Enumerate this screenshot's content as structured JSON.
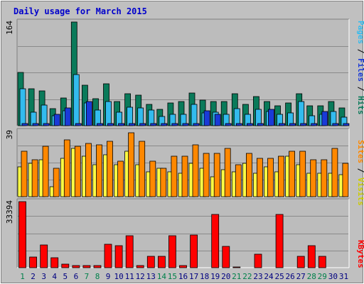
{
  "chart_data": {
    "type": "bar",
    "title": "Daily usage for March 2015",
    "categories": [
      "1",
      "2",
      "3",
      "4",
      "5",
      "6",
      "7",
      "8",
      "9",
      "10",
      "11",
      "12",
      "13",
      "14",
      "15",
      "16",
      "17",
      "18",
      "19",
      "20",
      "21",
      "22",
      "23",
      "24",
      "25",
      "26",
      "27",
      "28",
      "29",
      "30",
      "31"
    ],
    "weekend_days": [
      "1",
      "7",
      "8",
      "14",
      "15",
      "21",
      "22",
      "28",
      "29"
    ],
    "colors": {
      "background": "#c0c0c0",
      "plot": "#bcbcbc",
      "grid": "#8a8a8a",
      "title": "#0000cc",
      "hits": "#0a7a5a",
      "files": "#33bbee",
      "pages": "#1a3ad8",
      "visits": "#ffff44",
      "sites": "#ff8800",
      "kbytes": "#ff0000",
      "weekend_label": "#00804a",
      "weekday_label": "#000080"
    },
    "panels": [
      {
        "id": "hits-files-pages",
        "ymax_label": "164",
        "ymax": 164,
        "series": [
          {
            "name": "Hits",
            "values": [
              84,
              58,
              55,
              27,
              44,
              164,
              64,
              43,
              66,
              38,
              50,
              48,
              34,
              26,
              36,
              38,
              52,
              40,
              38,
              38,
              50,
              34,
              46,
              38,
              32,
              36,
              50,
              32,
              32,
              38,
              28
            ]
          },
          {
            "name": "Files",
            "values": [
              58,
              21,
              33,
              16,
              24,
              81,
              36,
              25,
              38,
              21,
              29,
              28,
              25,
              15,
              18,
              18,
              34,
              20,
              21,
              18,
              27,
              18,
              26,
              22,
              18,
              20,
              38,
              16,
              18,
              22,
              14
            ]
          },
          {
            "name": "Pages",
            "values": [
              3,
              3,
              3,
              18,
              28,
              3,
              38,
              3,
              3,
              3,
              3,
              3,
              3,
              3,
              3,
              3,
              3,
              24,
              18,
              3,
              3,
              3,
              3,
              26,
              3,
              3,
              3,
              3,
              22,
              3,
              3
            ]
          }
        ],
        "legend": [
          "Pages",
          "Files",
          "Hits"
        ]
      },
      {
        "id": "visits-sites",
        "ymax_label": "39",
        "ymax": 39,
        "series": [
          {
            "name": "Visits",
            "values": [
              18,
              20,
              22,
              6,
              23,
              29,
              24,
              19,
              25,
              19,
              27,
              19,
              15,
              17,
              15,
              14,
              20,
              17,
              12,
              16,
              15,
              20,
              14,
              18,
              15,
              24,
              19,
              14,
              14,
              14,
              13
            ]
          },
          {
            "name": "Sites",
            "values": [
              27,
              22,
              30,
              17,
              34,
              30,
              32,
              31,
              33,
              21,
              38,
              33,
              21,
              17,
              24,
              24,
              31,
              26,
              26,
              29,
              19,
              26,
              23,
              23,
              24,
              27,
              27,
              22,
              22,
              29,
              20
            ]
          }
        ],
        "legend": [
          "Sites",
          "Visits"
        ]
      },
      {
        "id": "kbytes",
        "ymax_label": "33394",
        "ymax": 33394,
        "series": [
          {
            "name": "KBytes",
            "values": [
              33394,
              5300,
              11600,
              5100,
              1900,
              1200,
              1200,
              1200,
              11800,
              11200,
              16000,
              1100,
              5900,
              5800,
              16000,
              1000,
              16600,
              0,
              27000,
              10600,
              200,
              100,
              6800,
              100,
              26800,
              100,
              5800,
              11200,
              5800,
              0,
              0
            ]
          }
        ],
        "legend": [
          "KBytes"
        ]
      }
    ]
  }
}
